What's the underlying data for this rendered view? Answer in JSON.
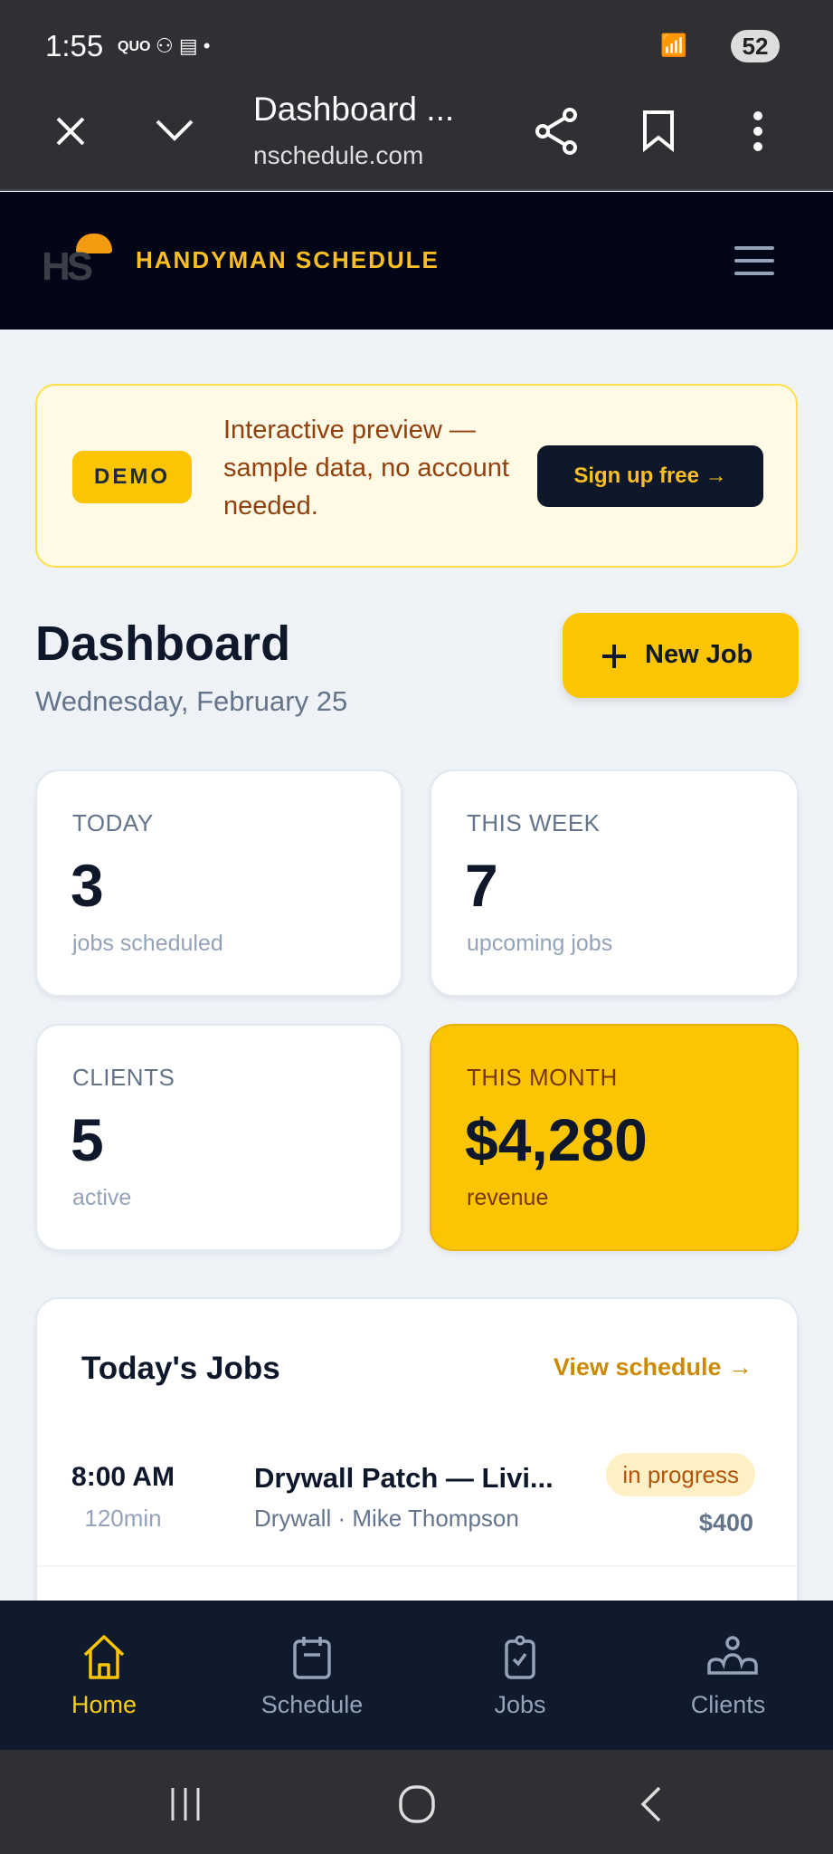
{
  "status_bar": {
    "time": "1:55",
    "notif_text": "QUO",
    "battery": "52"
  },
  "browser": {
    "title": "Dashboard ...",
    "url": "nschedule.com"
  },
  "header": {
    "brand": "HANDYMAN SCHEDULE",
    "logo_text": "HS"
  },
  "banner": {
    "badge": "DEMO",
    "message": "Interactive preview — sample data, no account needed.",
    "cta": "Sign up free →"
  },
  "page": {
    "title": "Dashboard",
    "date": "Wednesday, February 25",
    "new_job": "New Job"
  },
  "stats": [
    {
      "label": "TODAY",
      "value": "3",
      "sub": "jobs scheduled"
    },
    {
      "label": "THIS WEEK",
      "value": "7",
      "sub": "upcoming jobs"
    },
    {
      "label": "CLIENTS",
      "value": "5",
      "sub": "active"
    },
    {
      "label": "THIS MONTH",
      "value": "$4,280",
      "sub": "revenue"
    }
  ],
  "todays_jobs": {
    "title": "Today's Jobs",
    "link": "View schedule →",
    "jobs": [
      {
        "time": "8:00 AM",
        "duration": "120min",
        "title": "Drywall Patch — Livi...",
        "meta": "Drywall · Mike Thompson",
        "status": "in progress",
        "price": "$400"
      }
    ]
  },
  "bottom_nav": [
    {
      "label": "Home",
      "active": true
    },
    {
      "label": "Schedule"
    },
    {
      "label": "Jobs"
    },
    {
      "label": "Clients"
    }
  ],
  "colors": {
    "accent": "#fbc503",
    "dark": "#0f172a",
    "status_progress_bg": "#fdf0c4",
    "status_progress_text": "#b45309"
  }
}
